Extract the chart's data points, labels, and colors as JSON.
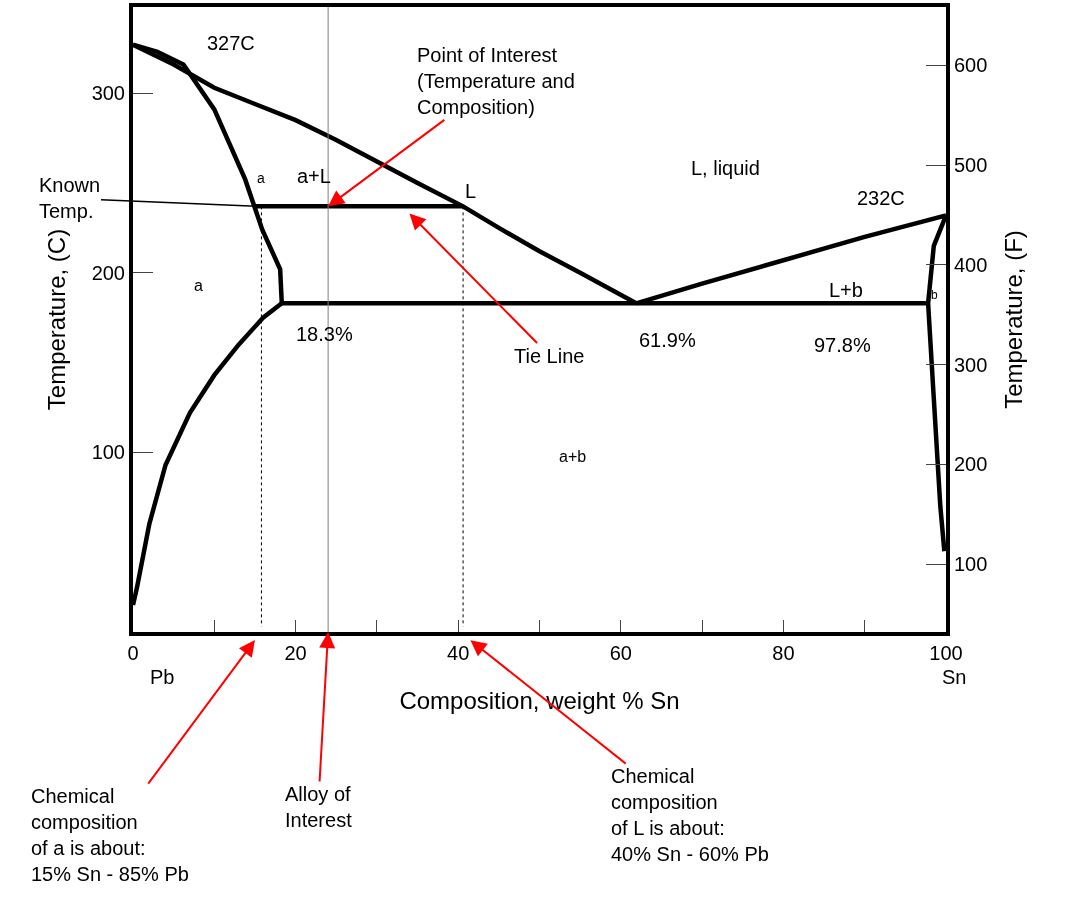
{
  "chart_data": {
    "type": "line",
    "xlabel": "Composition, weight % Sn",
    "ylabel": "Temperature, (C)",
    "y2label": "Temperature, (F)",
    "xlim": [
      0,
      100
    ],
    "xticks": [
      0,
      {
        "value": 10,
        "label": null
      },
      20,
      {
        "value": 30,
        "label": null
      },
      40,
      {
        "value": 50,
        "label": null
      },
      60,
      {
        "value": 70,
        "label": null
      },
      80,
      {
        "value": 90,
        "label": null
      },
      100
    ],
    "ylim": [
      0,
      348
    ],
    "yticks": [
      100,
      200,
      300
    ],
    "y2lim": [
      32,
      658.4
    ],
    "y2ticks": [
      100,
      200,
      300,
      400,
      500,
      600
    ],
    "marker": "none",
    "series": [
      {
        "color": "#000000",
        "line_style": "solid",
        "x": [
          0,
          5,
          10,
          15,
          20,
          25,
          30,
          35,
          40.6,
          45,
          50,
          55,
          61.9
        ],
        "values": [
          327,
          316,
          303,
          294,
          285,
          274,
          262,
          250,
          237,
          225,
          212,
          200,
          183
        ]
      },
      {
        "color": "#000000",
        "line_style": "solid",
        "x": [
          61.9,
          70,
          80,
          90,
          95,
          100
        ],
        "values": [
          183,
          194,
          207,
          220,
          226,
          232
        ]
      },
      {
        "color": "#000000",
        "line_style": "solid",
        "x": [
          0,
          3,
          6.2,
          10,
          13.8,
          15.9,
          18.1,
          18.3
        ],
        "values": [
          327,
          323,
          316,
          291,
          252,
          224,
          202,
          183
        ]
      },
      {
        "color": "#000000",
        "line_style": "solid",
        "x": [
          18.3,
          16,
          13,
          10,
          7,
          4,
          2,
          0.5,
          0
        ],
        "values": [
          183,
          175,
          160,
          143,
          122,
          93,
          60,
          25,
          15
        ]
      },
      {
        "color": "#000000",
        "line_style": "solid",
        "x": [
          18.3,
          97.8
        ],
        "values": [
          183,
          183
        ]
      },
      {
        "color": "#000000",
        "line_style": "solid",
        "x": [
          100,
          98.5,
          97.8,
          98.5,
          99.3,
          99.8
        ],
        "values": [
          232,
          215,
          183,
          130,
          70,
          45
        ]
      },
      {
        "color": "#000000",
        "line_style": "solid",
        "x": [
          15,
          40.6
        ],
        "values": [
          237,
          237
        ]
      },
      {
        "color": "#808080",
        "line_style": "solid",
        "x": [
          24,
          24
        ],
        "values": [
          0,
          348
        ]
      },
      {
        "color": "#000000",
        "line_style": "dotted",
        "x": [
          15.8,
          15.8
        ],
        "values": [
          237,
          3
        ]
      },
      {
        "color": "#000000",
        "line_style": "dotted",
        "x": [
          40.6,
          40.6
        ],
        "values": [
          237,
          3
        ]
      }
    ],
    "annotations": [
      "327C",
      {
        "text": "Point of Interest\n(Temperature and\nComposition)",
        "x": 24,
        "y": 237
      },
      "L, liquid",
      "232C",
      {
        "text": "Known\nTemp.",
        "x": 15.5,
        "y": 237
      },
      "a",
      "a+L",
      "L",
      "a",
      "L+b",
      "b",
      {
        "text": "18.3%",
        "x": 23.6,
        "y": 166
      },
      {
        "text": "Tie Line",
        "x": 34,
        "y": 233
      },
      "61.9%",
      "97.8%",
      "a+b",
      "Pb",
      "Sn",
      "Chemical\ncomposition\nof a is about:\n15% Sn - 85% Pb",
      {
        "text": "Alloy of\nInterest",
        "x": 24,
        "y": 0
      },
      "Chemical\ncomposition\nof L is about:\n40% Sn - 60% Pb"
    ]
  }
}
